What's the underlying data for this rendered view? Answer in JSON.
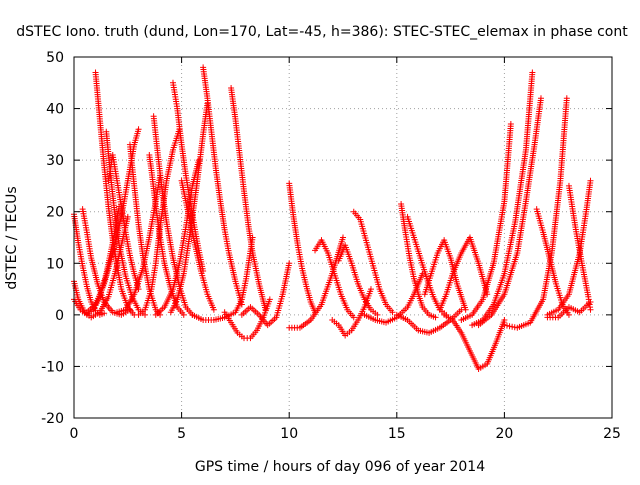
{
  "chart_data": {
    "type": "scatter",
    "title": "dSTEC Iono. truth (dund, Lon=170, Lat=-45, h=386): STEC-STEC_elemax in phase cont",
    "xlabel": "GPS time / hours of day 096 of year 2014",
    "ylabel": "dSTEC  / TECUs",
    "xlim": [
      0,
      25
    ],
    "ylim": [
      -20,
      50
    ],
    "xticks": [
      0,
      5,
      10,
      15,
      20,
      25
    ],
    "yticks": [
      -20,
      -10,
      0,
      10,
      20,
      30,
      40,
      50
    ],
    "grid": true,
    "legend": "none",
    "marker": "plus",
    "color": "#ff0000",
    "series": [
      {
        "x": [
          0.0,
          0.2,
          0.4,
          0.6,
          0.8,
          1.0,
          1.2,
          1.4
        ],
        "y": [
          19.5,
          14.0,
          9.5,
          5.5,
          2.5,
          0.8,
          0.0,
          0.3
        ]
      },
      {
        "x": [
          0.0,
          0.2,
          0.5,
          0.8,
          1.2,
          1.6,
          1.9,
          2.2,
          2.5
        ],
        "y": [
          6.5,
          3.0,
          0.5,
          -0.5,
          0.5,
          3.5,
          8.0,
          13.5,
          19.0
        ]
      },
      {
        "x": [
          0.0,
          0.3,
          0.6,
          0.9,
          1.2,
          1.5,
          1.8,
          2.1
        ],
        "y": [
          3.0,
          1.0,
          0.0,
          1.0,
          3.5,
          8.0,
          14.0,
          21.0
        ]
      },
      {
        "x": [
          0.4,
          0.6,
          0.8,
          1.1,
          1.4,
          1.8,
          2.2,
          2.6
        ],
        "y": [
          20.5,
          16.0,
          11.0,
          6.0,
          2.5,
          0.5,
          0.0,
          1.0
        ]
      },
      {
        "x": [
          0.6,
          1.0,
          1.4,
          1.8,
          2.2,
          2.5,
          2.8,
          3.0
        ],
        "y": [
          0.5,
          2.0,
          6.0,
          12.0,
          19.0,
          26.0,
          33.0,
          36.0
        ]
      },
      {
        "x": [
          1.0,
          1.2,
          1.4,
          1.6,
          1.8,
          2.0,
          2.2,
          2.5,
          2.8
        ],
        "y": [
          47.0,
          38.0,
          29.0,
          21.0,
          14.5,
          9.5,
          5.0,
          1.5,
          0.0
        ]
      },
      {
        "x": [
          1.5,
          1.7,
          1.9,
          2.1,
          2.4,
          2.7,
          3.0,
          3.3
        ],
        "y": [
          35.5,
          27.0,
          19.5,
          13.5,
          7.5,
          3.5,
          1.0,
          0.0
        ]
      },
      {
        "x": [
          1.6,
          1.8,
          2.0,
          2.2,
          2.4,
          2.6,
          2.8,
          3.0
        ],
        "y": [
          26.0,
          31.0,
          26.0,
          21.0,
          16.0,
          11.5,
          8.0,
          5.0
        ]
      },
      {
        "x": [
          2.0,
          2.4,
          2.8,
          3.2,
          3.5,
          3.8,
          4.0
        ],
        "y": [
          0.5,
          1.0,
          4.0,
          9.0,
          15.0,
          22.0,
          27.0
        ]
      },
      {
        "x": [
          2.6,
          2.8,
          3.0,
          3.2,
          3.5,
          3.8,
          4.0
        ],
        "y": [
          33.0,
          25.0,
          17.5,
          11.5,
          5.0,
          1.0,
          0.0
        ]
      },
      {
        "x": [
          3.0,
          3.3,
          3.6,
          3.8,
          4.0,
          4.3,
          4.6,
          4.9
        ],
        "y": [
          0.0,
          1.0,
          5.0,
          10.0,
          17.0,
          26.0,
          32.0,
          36.0
        ]
      },
      {
        "x": [
          3.5,
          3.6,
          3.8,
          4.0,
          4.2,
          4.5,
          4.8,
          5.1
        ],
        "y": [
          31.0,
          28.0,
          21.0,
          15.0,
          10.0,
          5.0,
          1.5,
          0.0
        ]
      },
      {
        "x": [
          3.7,
          3.9,
          4.1,
          4.3,
          4.6,
          4.9,
          5.2,
          5.5
        ],
        "y": [
          38.5,
          31.0,
          24.0,
          18.0,
          11.0,
          5.5,
          1.5,
          0.0
        ]
      },
      {
        "x": [
          3.8,
          4.2,
          4.6,
          4.9,
          5.2,
          5.5,
          5.8
        ],
        "y": [
          0.0,
          1.5,
          5.0,
          10.0,
          17.0,
          25.0,
          30.0
        ]
      },
      {
        "x": [
          4.5,
          4.8,
          5.1,
          5.4,
          5.7,
          6.0,
          6.2
        ],
        "y": [
          0.5,
          3.0,
          8.0,
          16.0,
          25.0,
          35.0,
          41.0
        ]
      },
      {
        "x": [
          4.6,
          4.8,
          5.0,
          5.2,
          5.4,
          5.6,
          5.8,
          6.0
        ],
        "y": [
          45.0,
          40.0,
          33.0,
          27.0,
          22.0,
          17.0,
          12.5,
          8.5
        ]
      },
      {
        "x": [
          5.0,
          5.3,
          5.6,
          5.9,
          6.2,
          6.5
        ],
        "y": [
          26.0,
          20.0,
          14.0,
          8.5,
          4.0,
          1.0
        ]
      },
      {
        "x": [
          6.0,
          6.2,
          6.4,
          6.6,
          6.8,
          7.0,
          7.2,
          7.5,
          7.8
        ],
        "y": [
          48.0,
          42.0,
          35.0,
          28.0,
          22.0,
          16.5,
          12.0,
          6.5,
          2.0
        ]
      },
      {
        "x": [
          5.5,
          6.0,
          6.5,
          7.0,
          7.5,
          7.8,
          8.0,
          8.3
        ],
        "y": [
          0.0,
          -1.0,
          -1.0,
          -0.5,
          0.5,
          3.0,
          7.0,
          15.0
        ]
      },
      {
        "x": [
          7.3,
          7.5,
          7.7,
          7.9,
          8.1,
          8.3,
          8.6,
          8.9
        ],
        "y": [
          44.0,
          38.0,
          31.0,
          24.0,
          17.5,
          12.0,
          6.0,
          1.0
        ]
      },
      {
        "x": [
          7.0,
          7.3,
          7.6,
          7.9,
          8.2,
          8.5,
          8.8,
          9.1
        ],
        "y": [
          0.5,
          -1.5,
          -3.5,
          -4.5,
          -4.5,
          -3.0,
          -0.5,
          3.0
        ]
      },
      {
        "x": [
          7.8,
          8.2,
          8.6,
          9.0,
          9.4,
          9.7,
          10.0
        ],
        "y": [
          0.0,
          1.5,
          0.0,
          -2.0,
          -0.5,
          4.0,
          10.0
        ]
      },
      {
        "x": [
          10.0,
          10.2,
          10.4,
          10.6,
          10.8,
          11.0,
          11.2
        ],
        "y": [
          25.5,
          19.0,
          13.5,
          9.0,
          5.5,
          2.5,
          0.5
        ]
      },
      {
        "x": [
          10.0,
          10.5,
          11.0,
          11.5,
          12.0,
          12.5
        ],
        "y": [
          -2.5,
          -2.5,
          -1.0,
          2.0,
          8.0,
          15.0
        ]
      },
      {
        "x": [
          11.2,
          11.5,
          11.8,
          12.1,
          12.4,
          12.7,
          13.0
        ],
        "y": [
          12.5,
          14.5,
          12.0,
          8.0,
          4.0,
          1.0,
          -0.5
        ]
      },
      {
        "x": [
          12.0,
          12.3,
          12.6,
          12.9,
          13.2,
          13.5,
          13.8
        ],
        "y": [
          -1.0,
          -2.0,
          -4.0,
          -3.0,
          -1.0,
          1.5,
          5.0
        ]
      },
      {
        "x": [
          12.3,
          12.6,
          12.9,
          13.2,
          13.5,
          13.8,
          14.1
        ],
        "y": [
          10.5,
          13.5,
          10.0,
          6.0,
          3.0,
          1.0,
          0.0
        ]
      },
      {
        "x": [
          13.0,
          13.3,
          13.6,
          13.9,
          14.2,
          14.5,
          14.8
        ],
        "y": [
          20.0,
          18.5,
          14.0,
          9.5,
          5.0,
          2.0,
          0.5
        ]
      },
      {
        "x": [
          13.5,
          14.0,
          14.5,
          15.0,
          15.5,
          15.8,
          16.2
        ],
        "y": [
          0.0,
          -1.0,
          -1.5,
          -0.5,
          1.5,
          4.0,
          8.0
        ]
      },
      {
        "x": [
          15.2,
          15.4,
          15.6,
          15.8,
          16.0,
          16.2,
          16.5,
          16.8
        ],
        "y": [
          21.5,
          16.0,
          11.0,
          7.0,
          4.0,
          1.5,
          0.0,
          -0.5
        ]
      },
      {
        "x": [
          15.5,
          15.8,
          16.1,
          16.4,
          16.7,
          17.0,
          17.3
        ],
        "y": [
          19.0,
          15.0,
          11.0,
          7.0,
          3.5,
          1.0,
          0.0
        ]
      },
      {
        "x": [
          15.0,
          15.5,
          16.0,
          16.5,
          17.0,
          17.5,
          18.0
        ],
        "y": [
          0.0,
          -1.0,
          -3.0,
          -3.5,
          -2.5,
          -1.0,
          1.0
        ]
      },
      {
        "x": [
          16.3,
          16.6,
          16.9,
          17.2,
          17.5,
          17.8,
          18.2
        ],
        "y": [
          4.0,
          8.0,
          12.0,
          14.5,
          11.0,
          6.0,
          1.0
        ]
      },
      {
        "x": [
          17.0,
          17.3,
          17.6,
          18.0,
          18.4,
          18.8,
          19.2
        ],
        "y": [
          1.0,
          4.0,
          8.0,
          12.0,
          15.0,
          10.0,
          4.0
        ]
      },
      {
        "x": [
          17.2,
          17.6,
          18.0,
          18.4,
          18.8,
          19.2,
          19.6,
          20.0
        ],
        "y": [
          0.0,
          -1.0,
          -3.5,
          -7.0,
          -10.5,
          -9.5,
          -5.5,
          -1.0
        ]
      },
      {
        "x": [
          18.0,
          18.5,
          19.0,
          19.5,
          20.0,
          20.3
        ],
        "y": [
          -1.0,
          0.0,
          3.0,
          10.0,
          22.0,
          37.0
        ]
      },
      {
        "x": [
          18.5,
          19.0,
          19.5,
          20.0,
          20.5,
          21.0,
          21.3
        ],
        "y": [
          -2.0,
          -1.0,
          2.0,
          8.0,
          18.0,
          32.0,
          47.0
        ]
      },
      {
        "x": [
          18.8,
          19.4,
          20.0,
          20.6,
          21.0,
          21.4,
          21.7
        ],
        "y": [
          -2.0,
          0.0,
          4.0,
          12.0,
          22.0,
          33.0,
          42.0
        ]
      },
      {
        "x": [
          20.0,
          20.6,
          21.2,
          21.8,
          22.2,
          22.6,
          22.9
        ],
        "y": [
          -2.0,
          -2.5,
          -1.5,
          3.0,
          12.0,
          26.0,
          42.0
        ]
      },
      {
        "x": [
          21.5,
          21.8,
          22.1,
          22.4,
          22.7,
          23.0
        ],
        "y": [
          20.5,
          16.0,
          11.0,
          6.0,
          2.0,
          0.0
        ]
      },
      {
        "x": [
          22.0,
          22.5,
          23.0,
          23.5,
          23.8,
          24.0
        ],
        "y": [
          0.0,
          1.0,
          4.0,
          12.0,
          20.0,
          26.0
        ]
      },
      {
        "x": [
          23.0,
          23.3,
          23.6,
          23.9,
          24.0
        ],
        "y": [
          25.0,
          17.0,
          10.0,
          3.5,
          1.0
        ]
      },
      {
        "x": [
          22.0,
          22.5,
          23.0,
          23.5,
          24.0
        ],
        "y": [
          -0.5,
          -0.5,
          1.5,
          0.5,
          2.5
        ]
      }
    ]
  }
}
